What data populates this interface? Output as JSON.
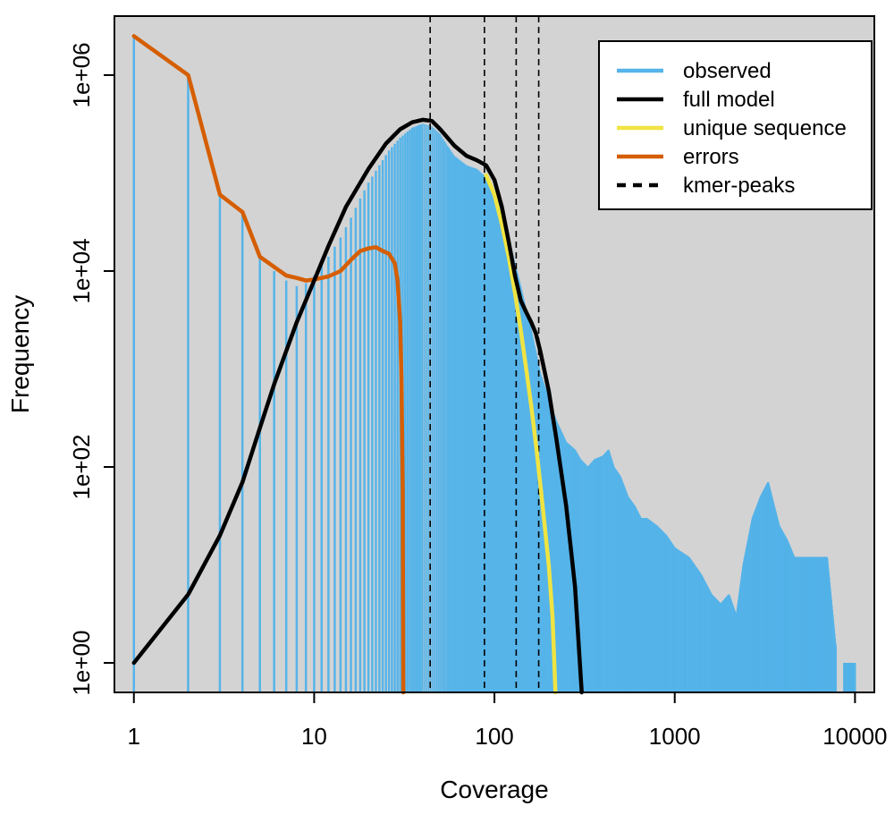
{
  "chart_data": {
    "type": "line",
    "xlabel": "Coverage",
    "ylabel": "Frequency",
    "x_scale": "log",
    "y_scale": "log",
    "xlim": [
      0.78,
      12800
    ],
    "ylim": [
      0.5,
      4000000
    ],
    "grid": false,
    "legend_position": "top-right",
    "background": "#d3d3d3",
    "x_ticks": [
      {
        "value": 1,
        "label": "1"
      },
      {
        "value": 10,
        "label": "10"
      },
      {
        "value": 100,
        "label": "100"
      },
      {
        "value": 1000,
        "label": "1000"
      },
      {
        "value": 10000,
        "label": "10000"
      }
    ],
    "y_ticks": [
      {
        "value": 1,
        "label": "1e+00"
      },
      {
        "value": 100,
        "label": "1e+02"
      },
      {
        "value": 10000,
        "label": "1e+04"
      },
      {
        "value": 1000000,
        "label": "1e+06"
      }
    ],
    "legend": [
      {
        "name": "observed",
        "color": "#56b4e9",
        "style": "solid"
      },
      {
        "name": "full model",
        "color": "#000000",
        "style": "solid"
      },
      {
        "name": "unique sequence",
        "color": "#f0e442",
        "style": "solid"
      },
      {
        "name": "errors",
        "color": "#d55e00",
        "style": "solid"
      },
      {
        "name": "kmer-peaks",
        "color": "#000000",
        "style": "dashed"
      }
    ],
    "kmer_peaks": [
      44,
      88,
      132,
      176
    ],
    "observed": {
      "name": "observed",
      "color": "#56b4e9",
      "points": [
        [
          1,
          2500000
        ],
        [
          2,
          1000000
        ],
        [
          3,
          60000
        ],
        [
          4,
          40000
        ],
        [
          5,
          14000
        ],
        [
          6,
          10000
        ],
        [
          7,
          8000
        ],
        [
          8,
          7000
        ],
        [
          9,
          7500
        ],
        [
          10,
          9000
        ],
        [
          12,
          14000
        ],
        [
          14,
          22000
        ],
        [
          16,
          35000
        ],
        [
          18,
          55000
        ],
        [
          20,
          80000
        ],
        [
          23,
          120000
        ],
        [
          26,
          170000
        ],
        [
          30,
          230000
        ],
        [
          35,
          290000
        ],
        [
          40,
          320000
        ],
        [
          45,
          300000
        ],
        [
          50,
          250000
        ],
        [
          55,
          190000
        ],
        [
          60,
          150000
        ],
        [
          70,
          120000
        ],
        [
          80,
          110000
        ],
        [
          90,
          90000
        ],
        [
          100,
          65000
        ],
        [
          110,
          40000
        ],
        [
          120,
          22000
        ],
        [
          130,
          12000
        ],
        [
          140,
          7000
        ],
        [
          150,
          4000
        ],
        [
          160,
          2500
        ],
        [
          170,
          1500
        ],
        [
          180,
          900
        ],
        [
          200,
          500
        ],
        [
          220,
          300
        ],
        [
          250,
          180
        ],
        [
          280,
          150
        ],
        [
          300,
          120
        ],
        [
          330,
          100
        ],
        [
          360,
          120
        ],
        [
          400,
          130
        ],
        [
          430,
          150
        ],
        [
          460,
          100
        ],
        [
          500,
          80
        ],
        [
          550,
          50
        ],
        [
          600,
          40
        ],
        [
          650,
          30
        ],
        [
          700,
          30
        ],
        [
          800,
          25
        ],
        [
          900,
          20
        ],
        [
          1000,
          15
        ],
        [
          1200,
          12
        ],
        [
          1400,
          8
        ],
        [
          1600,
          5
        ],
        [
          1800,
          4
        ],
        [
          2000,
          5
        ],
        [
          2200,
          3
        ],
        [
          2400,
          10
        ],
        [
          2700,
          30
        ],
        [
          3000,
          50
        ],
        [
          3300,
          70
        ],
        [
          3500,
          45
        ],
        [
          3800,
          25
        ],
        [
          4200,
          18
        ],
        [
          4600,
          12
        ],
        [
          5200,
          12
        ],
        [
          6000,
          12
        ],
        [
          7000,
          12
        ],
        [
          7800,
          1.5
        ],
        [
          8500,
          1
        ],
        [
          9000,
          1
        ],
        [
          9500,
          1
        ],
        [
          10000,
          1
        ]
      ]
    },
    "series": [
      {
        "name": "full model",
        "color": "#000000",
        "points": [
          [
            1,
            1
          ],
          [
            2,
            5
          ],
          [
            3,
            20
          ],
          [
            4,
            70
          ],
          [
            5,
            250
          ],
          [
            6,
            700
          ],
          [
            8,
            3000
          ],
          [
            10,
            8000
          ],
          [
            12,
            18000
          ],
          [
            15,
            45000
          ],
          [
            20,
            110000
          ],
          [
            25,
            200000
          ],
          [
            30,
            280000
          ],
          [
            35,
            330000
          ],
          [
            40,
            350000
          ],
          [
            45,
            340000
          ],
          [
            50,
            280000
          ],
          [
            60,
            190000
          ],
          [
            70,
            150000
          ],
          [
            80,
            135000
          ],
          [
            90,
            120000
          ],
          [
            100,
            85000
          ],
          [
            110,
            45000
          ],
          [
            120,
            20000
          ],
          [
            130,
            9000
          ],
          [
            140,
            5000
          ],
          [
            150,
            3800
          ],
          [
            160,
            3000
          ],
          [
            170,
            2300
          ],
          [
            180,
            1500
          ],
          [
            200,
            600
          ],
          [
            220,
            200
          ],
          [
            250,
            40
          ],
          [
            280,
            6
          ],
          [
            305,
            0.5
          ]
        ]
      },
      {
        "name": "unique sequence",
        "color": "#f0e442",
        "points": [
          [
            90,
            95000
          ],
          [
            100,
            60000
          ],
          [
            110,
            30000
          ],
          [
            120,
            14000
          ],
          [
            130,
            6000
          ],
          [
            140,
            2500
          ],
          [
            150,
            1000
          ],
          [
            160,
            420
          ],
          [
            170,
            170
          ],
          [
            180,
            65
          ],
          [
            190,
            25
          ],
          [
            200,
            10
          ],
          [
            210,
            3
          ],
          [
            218,
            0.5
          ]
        ]
      },
      {
        "name": "errors",
        "color": "#d55e00",
        "points": [
          [
            1,
            2500000
          ],
          [
            2,
            1000000
          ],
          [
            3,
            60000
          ],
          [
            4,
            40000
          ],
          [
            5,
            14000
          ],
          [
            6,
            11000
          ],
          [
            7,
            9000
          ],
          [
            8,
            8500
          ],
          [
            9,
            8000
          ],
          [
            10,
            8200
          ],
          [
            12,
            8800
          ],
          [
            14,
            10000
          ],
          [
            16,
            13000
          ],
          [
            18,
            16000
          ],
          [
            20,
            17000
          ],
          [
            22,
            17500
          ],
          [
            24,
            16000
          ],
          [
            26,
            15000
          ],
          [
            28,
            12000
          ],
          [
            29,
            8000
          ],
          [
            30,
            3000
          ],
          [
            30.5,
            800
          ],
          [
            31,
            60
          ],
          [
            31.2,
            0.5
          ]
        ]
      }
    ]
  }
}
